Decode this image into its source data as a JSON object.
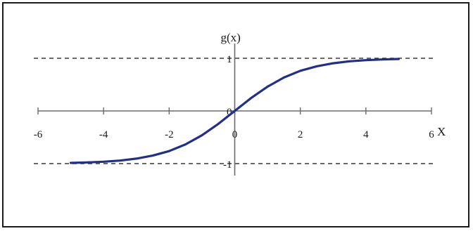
{
  "chart_data": {
    "type": "line",
    "title": "",
    "xlabel": "X",
    "ylabel": "g(x)",
    "xlim": [
      -6,
      6
    ],
    "ylim": [
      -1,
      1
    ],
    "x_tick_labels": [
      "-6",
      "-4",
      "-2",
      "0",
      "2",
      "4",
      "6"
    ],
    "y_tick_labels": [
      "-1",
      "0",
      "1"
    ],
    "reference_lines": [
      1,
      -1
    ],
    "grid": false,
    "series": [
      {
        "color": "#1f2f8a",
        "x": [
          -5,
          -4.5,
          -4,
          -3.5,
          -3,
          -2.5,
          -2,
          -1.5,
          -1,
          -0.5,
          0,
          0.5,
          1,
          1.5,
          2,
          2.5,
          3,
          3.5,
          4,
          4.5,
          5
        ],
        "y": [
          -0.987,
          -0.978,
          -0.964,
          -0.943,
          -0.905,
          -0.848,
          -0.762,
          -0.635,
          -0.462,
          -0.245,
          0,
          0.245,
          0.462,
          0.635,
          0.762,
          0.848,
          0.905,
          0.943,
          0.964,
          0.978,
          0.987
        ]
      }
    ],
    "colors": {
      "axis": "#6b6b6b",
      "dashed": "#3a3a3a",
      "curve": "#1f2f8a"
    }
  }
}
